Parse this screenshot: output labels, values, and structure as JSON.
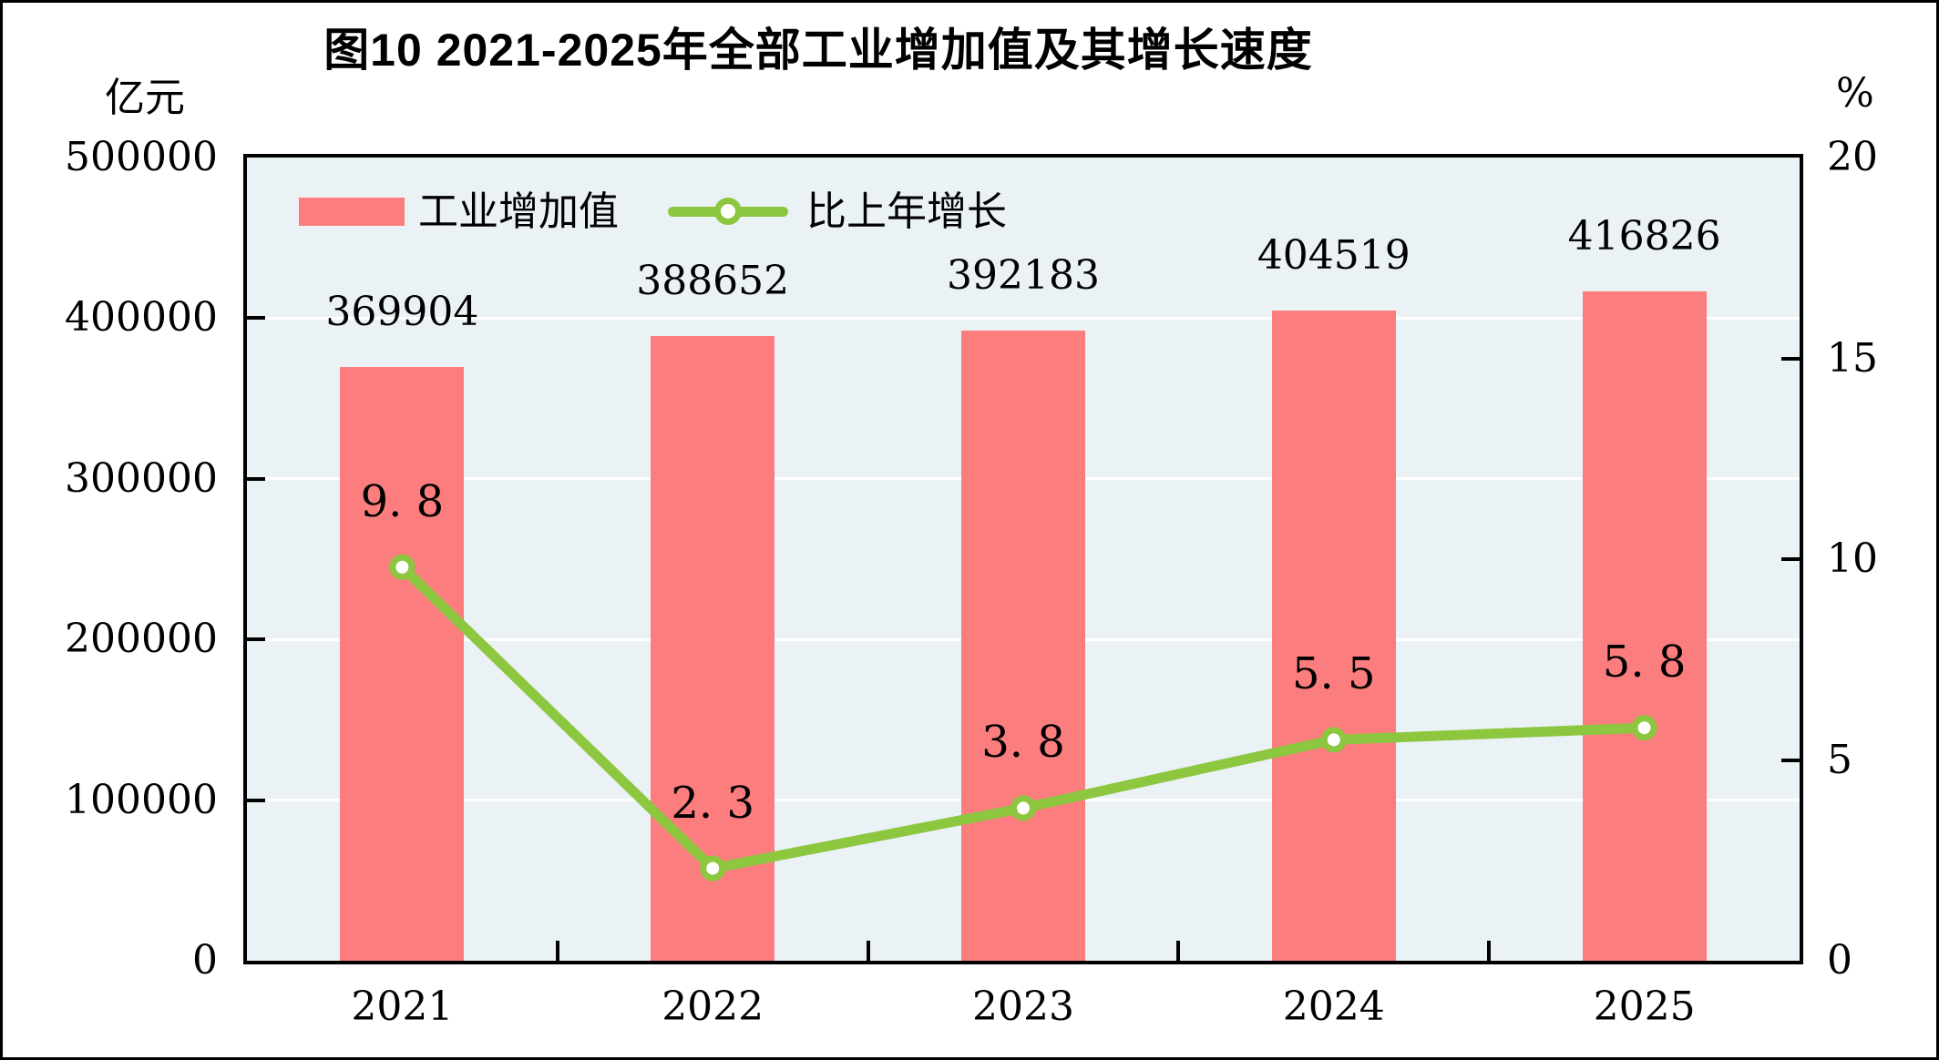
{
  "page": {
    "background_color": "#FFFFFF",
    "frame_color": "#000000"
  },
  "chart_data": {
    "type": "bar",
    "title": "图10  2021-2025年全部工业增加值及其增长速度",
    "categories": [
      "2021",
      "2022",
      "2023",
      "2024",
      "2025"
    ],
    "series": [
      {
        "name": "工业增加值",
        "chart_type": "bar",
        "axis": "left",
        "unit": "亿元",
        "color": "#FB7D7D",
        "values": [
          369904,
          388652,
          392183,
          404519,
          416826
        ]
      },
      {
        "name": "比上年增长",
        "chart_type": "line",
        "axis": "right",
        "unit": "%",
        "color": "#8DC63F",
        "marker": "open-circle",
        "marker_fill": "#FFFFFF",
        "values": [
          9.8,
          2.3,
          3.8,
          5.5,
          5.8
        ]
      }
    ],
    "left_axis_unit": "亿元",
    "right_axis_unit": "%",
    "left_ylim": [
      0,
      500000
    ],
    "right_ylim": [
      0,
      20
    ],
    "left_ticks": [
      0,
      100000,
      200000,
      300000,
      400000,
      500000
    ],
    "right_ticks": [
      0,
      5,
      10,
      15,
      20
    ],
    "grid": true,
    "grid_color": "#FFFFFF",
    "plot_bg_color": "#EBF2F6",
    "axis_color": "#000000",
    "legend_position": "top-inside"
  }
}
